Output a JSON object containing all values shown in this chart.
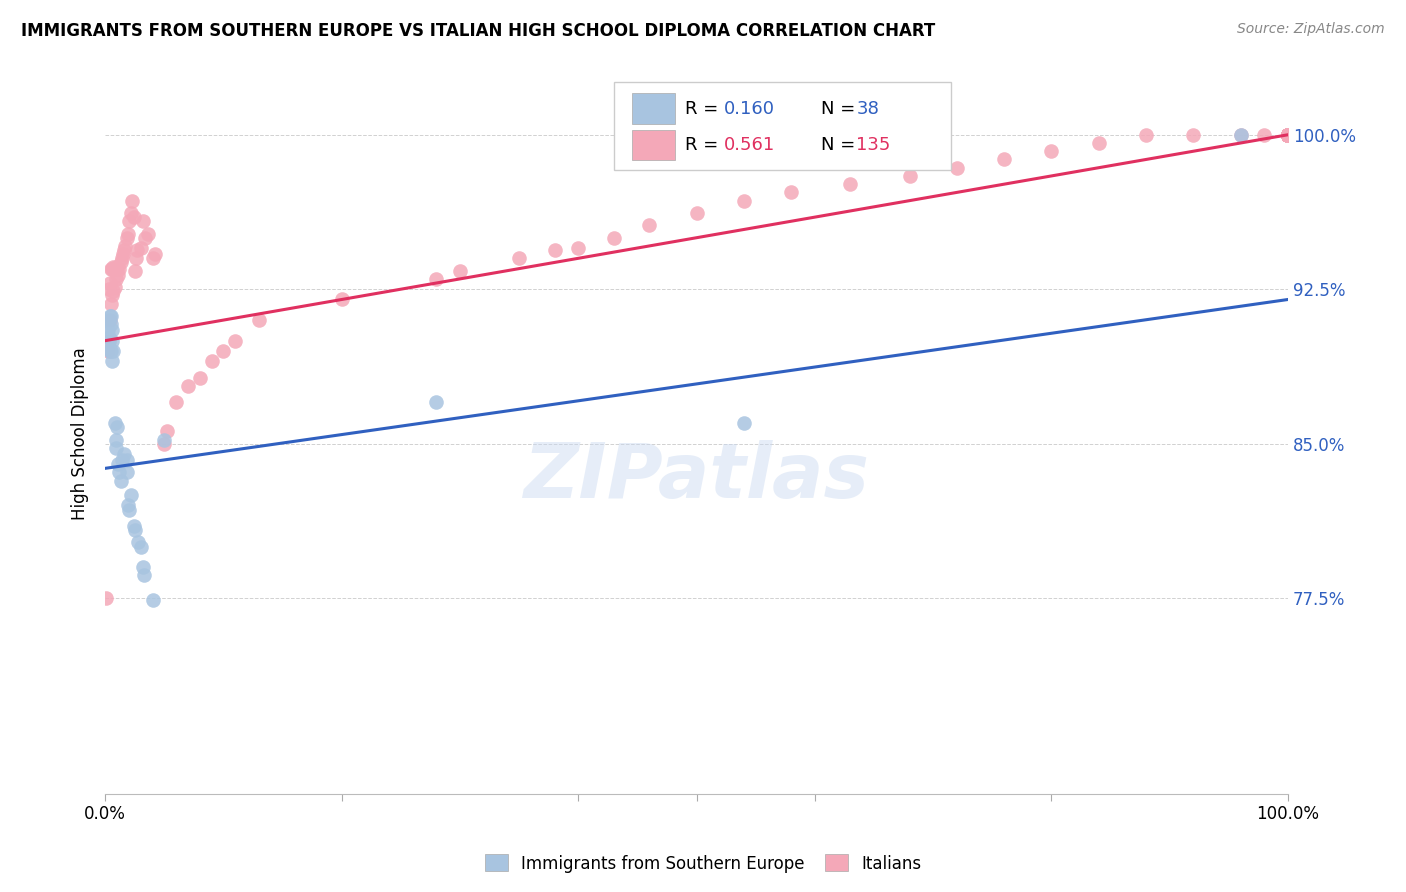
{
  "title": "IMMIGRANTS FROM SOUTHERN EUROPE VS ITALIAN HIGH SCHOOL DIPLOMA CORRELATION CHART",
  "source": "Source: ZipAtlas.com",
  "ylabel": "High School Diploma",
  "yticks": [
    "77.5%",
    "85.0%",
    "92.5%",
    "100.0%"
  ],
  "ytick_vals": [
    0.775,
    0.85,
    0.925,
    1.0
  ],
  "xlim": [
    0.0,
    1.0
  ],
  "ylim": [
    0.68,
    1.03
  ],
  "blue_color": "#A8C4E0",
  "pink_color": "#F4A8B8",
  "blue_line_color": "#3060C0",
  "pink_line_color": "#E03060",
  "watermark": "ZIPatlas",
  "blue_scatter_x": [
    0.002,
    0.003,
    0.003,
    0.004,
    0.005,
    0.005,
    0.006,
    0.006,
    0.007,
    0.008,
    0.009,
    0.01,
    0.011,
    0.012,
    0.013,
    0.014,
    0.016,
    0.018,
    0.019,
    0.02,
    0.022,
    0.024,
    0.025,
    0.028,
    0.03,
    0.032,
    0.033,
    0.04,
    0.05,
    0.28,
    0.54,
    0.96,
    0.003,
    0.004,
    0.005,
    0.006,
    0.009,
    0.018
  ],
  "blue_scatter_y": [
    0.905,
    0.91,
    0.9,
    0.895,
    0.908,
    0.895,
    0.9,
    0.89,
    0.895,
    0.86,
    0.852,
    0.858,
    0.84,
    0.836,
    0.832,
    0.842,
    0.845,
    0.836,
    0.82,
    0.818,
    0.825,
    0.81,
    0.808,
    0.802,
    0.8,
    0.79,
    0.786,
    0.774,
    0.852,
    0.87,
    0.86,
    1.0,
    0.902,
    0.912,
    0.912,
    0.905,
    0.848,
    0.842
  ],
  "pink_scatter_x": [
    0.001,
    0.002,
    0.003,
    0.003,
    0.004,
    0.004,
    0.005,
    0.005,
    0.006,
    0.006,
    0.007,
    0.007,
    0.008,
    0.008,
    0.009,
    0.009,
    0.01,
    0.011,
    0.012,
    0.013,
    0.014,
    0.015,
    0.016,
    0.017,
    0.018,
    0.019,
    0.02,
    0.022,
    0.023,
    0.024,
    0.025,
    0.026,
    0.027,
    0.03,
    0.032,
    0.034,
    0.036,
    0.04,
    0.042,
    0.05,
    0.052,
    0.06,
    0.07,
    0.08,
    0.09,
    0.1,
    0.11,
    0.13,
    0.2,
    0.28,
    0.3,
    0.35,
    0.38,
    0.4,
    0.43,
    0.46,
    0.5,
    0.54,
    0.58,
    0.63,
    0.68,
    0.72,
    0.76,
    0.8,
    0.84,
    0.88,
    0.92,
    0.96,
    0.98,
    1.0,
    1.0,
    1.0,
    1.0,
    1.0,
    1.0,
    1.0,
    1.0,
    1.0,
    1.0,
    1.0,
    1.0,
    1.0,
    1.0,
    1.0,
    1.0,
    1.0,
    1.0,
    1.0,
    1.0,
    1.0,
    1.0,
    1.0,
    1.0,
    1.0,
    1.0,
    1.0,
    1.0,
    1.0,
    1.0,
    1.0,
    1.0,
    1.0,
    1.0,
    1.0,
    1.0,
    1.0,
    1.0,
    1.0,
    1.0,
    1.0,
    1.0,
    1.0,
    1.0,
    1.0,
    1.0,
    1.0,
    1.0,
    1.0,
    1.0,
    1.0,
    1.0,
    1.0,
    1.0,
    1.0,
    1.0,
    1.0,
    1.0,
    1.0,
    1.0,
    1.0,
    1.0,
    1.0,
    1.0,
    1.0,
    1.0
  ],
  "pink_scatter_y": [
    0.775,
    0.895,
    0.9,
    0.925,
    0.91,
    0.928,
    0.918,
    0.935,
    0.922,
    0.935,
    0.924,
    0.936,
    0.926,
    0.935,
    0.93,
    0.936,
    0.935,
    0.932,
    0.935,
    0.938,
    0.94,
    0.942,
    0.944,
    0.946,
    0.95,
    0.952,
    0.958,
    0.962,
    0.968,
    0.96,
    0.934,
    0.94,
    0.944,
    0.945,
    0.958,
    0.95,
    0.952,
    0.94,
    0.942,
    0.85,
    0.856,
    0.87,
    0.878,
    0.882,
    0.89,
    0.895,
    0.9,
    0.91,
    0.92,
    0.93,
    0.934,
    0.94,
    0.944,
    0.945,
    0.95,
    0.956,
    0.962,
    0.968,
    0.972,
    0.976,
    0.98,
    0.984,
    0.988,
    0.992,
    0.996,
    1.0,
    1.0,
    1.0,
    1.0,
    1.0,
    1.0,
    1.0,
    1.0,
    1.0,
    1.0,
    1.0,
    1.0,
    1.0,
    1.0,
    1.0,
    1.0,
    1.0,
    1.0,
    1.0,
    1.0,
    1.0,
    1.0,
    1.0,
    1.0,
    1.0,
    1.0,
    1.0,
    1.0,
    1.0,
    1.0,
    1.0,
    1.0,
    1.0,
    1.0,
    1.0,
    1.0,
    1.0,
    1.0,
    1.0,
    1.0,
    1.0,
    1.0,
    1.0,
    1.0,
    1.0,
    1.0,
    1.0,
    1.0,
    1.0,
    1.0,
    1.0,
    1.0,
    1.0,
    1.0,
    1.0,
    1.0,
    1.0,
    1.0,
    1.0,
    1.0,
    1.0,
    1.0,
    1.0,
    1.0,
    1.0,
    1.0,
    1.0,
    1.0,
    1.0,
    1.0
  ],
  "blue_line_x": [
    0.0,
    1.0
  ],
  "blue_line_y": [
    0.838,
    0.92
  ],
  "pink_line_x": [
    0.0,
    1.0
  ],
  "pink_line_y": [
    0.9,
    1.0
  ]
}
